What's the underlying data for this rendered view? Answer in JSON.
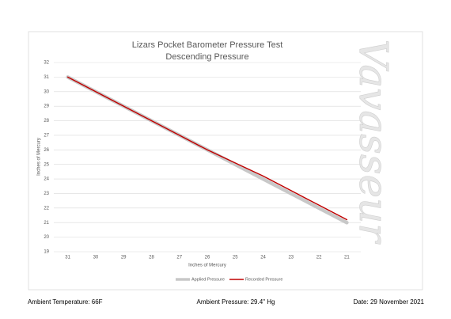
{
  "chart_data": {
    "type": "line",
    "title": "Lizars Pocket Barometer Pressure Test",
    "subtitle": "Descending Pressure",
    "x_label": "Inches of Mercury",
    "y_label": "Inches of Mercury",
    "watermark": "Vavasseur",
    "categories": [
      31,
      30,
      29,
      28,
      27,
      26,
      25,
      24,
      23,
      22,
      21
    ],
    "series": [
      {
        "name": "Applied Pressure",
        "color": "#c8c8c8",
        "values": [
          31,
          30,
          29,
          28,
          27,
          26,
          25,
          24,
          23,
          22,
          21
        ]
      },
      {
        "name": "Recorded Pressure",
        "color": "#c00000",
        "values": [
          31,
          30,
          29,
          28,
          27,
          26,
          25.1,
          24.2,
          23.2,
          22.2,
          21.2
        ]
      }
    ],
    "ylim": [
      19,
      32
    ],
    "yticks": [
      19,
      20,
      21,
      22,
      23,
      24,
      25,
      26,
      27,
      28,
      29,
      30,
      31,
      32
    ],
    "grid": true,
    "legend": "bottom"
  },
  "footer": {
    "left": "Ambient Temperature: 66F",
    "center": "Ambient Pressure: 29.4\" Hg",
    "right": "Date: 29 November 2021"
  }
}
